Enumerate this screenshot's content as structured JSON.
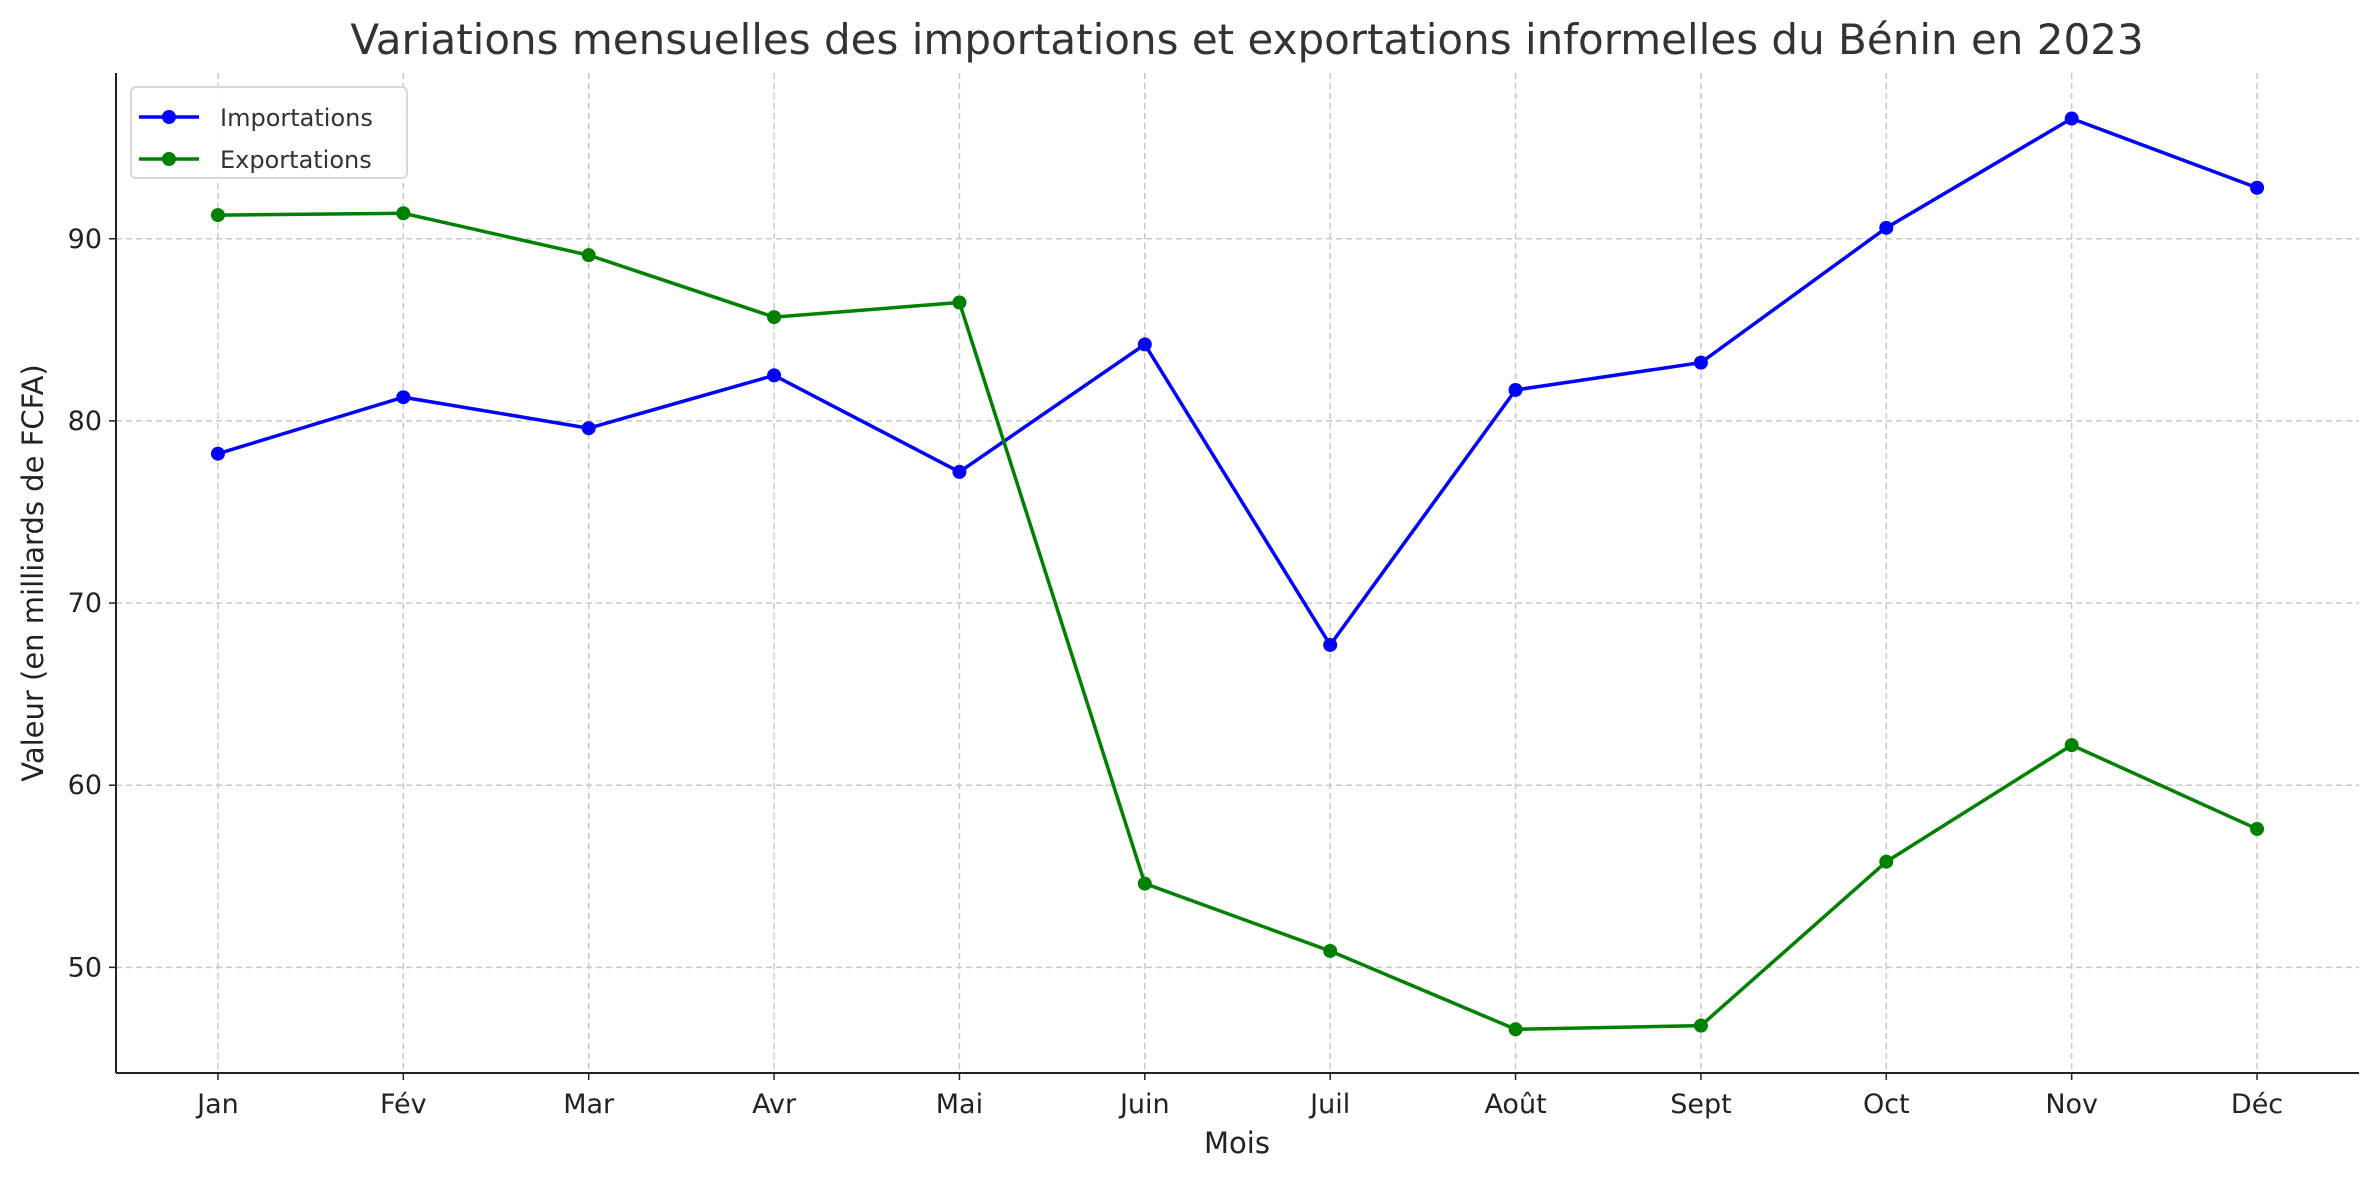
{
  "chart_data": {
    "type": "line",
    "title": "Variations mensuelles des importations et exportations informelles du Bénin en 2023",
    "xlabel": "Mois",
    "ylabel": "Valeur (en milliards de FCFA)",
    "categories": [
      "Jan",
      "Fév",
      "Mar",
      "Avr",
      "Mai",
      "Juin",
      "Juil",
      "Août",
      "Sept",
      "Oct",
      "Nov",
      "Déc"
    ],
    "ylim": [
      44.2,
      99.1
    ],
    "yticks": [
      50,
      60,
      70,
      80,
      90
    ],
    "grid": true,
    "legend_position": "top-left",
    "series": [
      {
        "name": "Importations",
        "color": "#0000ff",
        "values": [
          78.2,
          81.3,
          79.6,
          82.5,
          77.2,
          84.2,
          67.7,
          81.7,
          83.2,
          90.6,
          96.6,
          92.8
        ]
      },
      {
        "name": "Exportations",
        "color": "#008000",
        "values": [
          91.3,
          91.4,
          89.1,
          85.7,
          86.5,
          54.6,
          50.9,
          46.6,
          46.8,
          55.8,
          62.2,
          57.6
        ]
      }
    ]
  }
}
